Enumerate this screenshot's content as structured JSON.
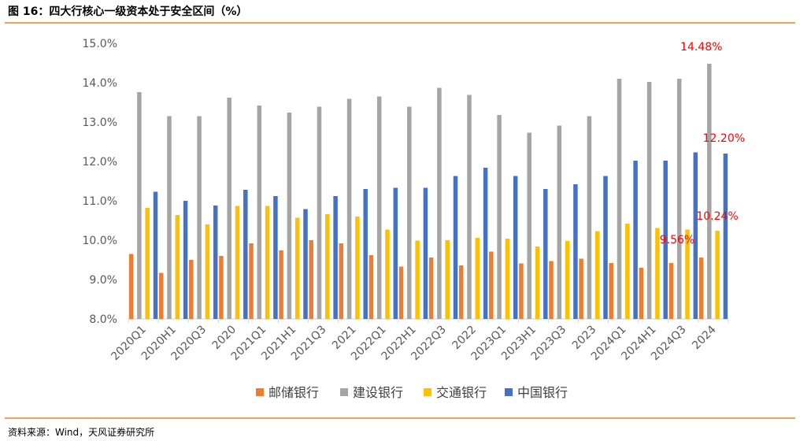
{
  "header": {
    "title": "图 16：四大行核心一级资本处于安全区间（%）"
  },
  "footer": {
    "source": "资料来源：Wind，天风证券研究所"
  },
  "chart_data": {
    "type": "bar",
    "title": "图 16：四大行核心一级资本处于安全区间（%）",
    "xlabel": "",
    "ylabel": "",
    "ylim": [
      8.0,
      15.0
    ],
    "yticks": [
      8.0,
      9.0,
      10.0,
      11.0,
      12.0,
      13.0,
      14.0,
      15.0
    ],
    "ytick_format": "%",
    "grid": false,
    "legend_position": "bottom",
    "categories": [
      "2020Q1",
      "2020H1",
      "2020Q3",
      "2020",
      "2021Q1",
      "2021H1",
      "2021Q3",
      "2021",
      "2022Q1",
      "2022H1",
      "2022Q3",
      "2022",
      "2023Q1",
      "2023H1",
      "2023Q3",
      "2023",
      "2024Q1",
      "2024H1",
      "2024Q3",
      "2024"
    ],
    "series": [
      {
        "name": "邮储银行",
        "color": "#ed7d31",
        "values": [
          9.65,
          9.17,
          9.5,
          9.6,
          9.92,
          9.74,
          10.0,
          9.92,
          9.62,
          9.33,
          9.56,
          9.36,
          9.71,
          9.41,
          9.47,
          9.53,
          9.42,
          9.3,
          9.42,
          9.56
        ]
      },
      {
        "name": "建设银行",
        "color": "#a5a5a5",
        "values": [
          13.76,
          13.15,
          13.15,
          13.62,
          13.42,
          13.24,
          13.39,
          13.59,
          13.65,
          13.39,
          13.87,
          13.69,
          13.18,
          12.73,
          12.91,
          13.15,
          14.1,
          14.02,
          14.1,
          14.48
        ]
      },
      {
        "name": "交通银行",
        "color": "#ffc000",
        "values": [
          10.82,
          10.64,
          10.4,
          10.87,
          10.87,
          10.57,
          10.66,
          10.6,
          10.27,
          9.99,
          10.0,
          10.06,
          10.04,
          9.84,
          9.98,
          10.23,
          10.42,
          10.31,
          10.27,
          10.24
        ]
      },
      {
        "name": "中国银行",
        "color": "#4472c4",
        "values": [
          11.23,
          11.0,
          10.88,
          11.28,
          11.12,
          10.79,
          11.12,
          11.3,
          11.33,
          11.33,
          11.63,
          11.84,
          11.63,
          11.3,
          11.42,
          11.63,
          12.02,
          12.02,
          12.23,
          12.2
        ]
      }
    ],
    "annotations": [
      {
        "series": "建设银行",
        "category": "2024",
        "label": "14.48%"
      },
      {
        "series": "中国银行",
        "category": "2024",
        "label": "12.20%"
      },
      {
        "series": "交通银行",
        "category": "2024",
        "label": "10.24%"
      },
      {
        "series": "邮储银行",
        "category": "2024",
        "label": "9.56%"
      }
    ]
  }
}
